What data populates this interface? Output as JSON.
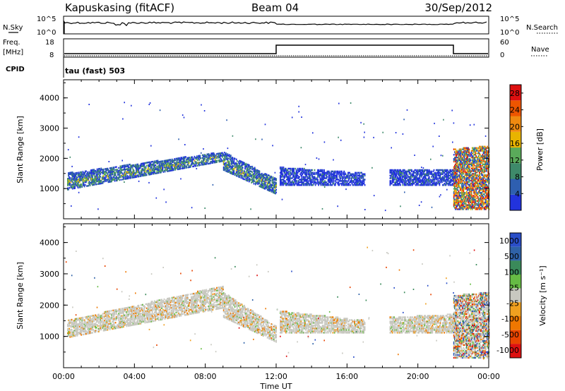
{
  "header": {
    "station": "Kapuskasing (fitACF)",
    "beam": "Beam 04",
    "date": "30/Sep/2012"
  },
  "top_panels": {
    "nsky_label": "N.Sky",
    "nsky_ticks": [
      "10^5",
      "10^0"
    ],
    "nsearch_label": "N.Search",
    "nsearch_ticks": [
      "10^5",
      "10^0"
    ],
    "freq_label": "Freq.",
    "freq_unit": "[MHz]",
    "freq_ticks": [
      "18",
      "8"
    ],
    "nave_label": "Nave",
    "nave_ticks": [
      "60",
      "0"
    ],
    "cpid_label": "CPID",
    "cpid_value": "tau (fast) 503"
  },
  "colors": {
    "power_scale": [
      "#2233dd",
      "#2e5fb0",
      "#3e8a6a",
      "#5aaa5a",
      "#e8b400",
      "#f08a10",
      "#ee5500",
      "#dd1010"
    ],
    "velocity_scale": [
      "#2a4ec8",
      "#2f62a8",
      "#3a8a5a",
      "#66bb44",
      "#c8c8c0",
      "#f0a020",
      "#ee7700",
      "#e84400",
      "#dd1111"
    ]
  },
  "chart_data": [
    {
      "type": "heatmap",
      "title": "",
      "xlabel": "",
      "ylabel": "Slant Range [km]",
      "xlim": [
        "00:00",
        "24:00"
      ],
      "ylim": [
        0,
        4600
      ],
      "yticks": [
        "1000",
        "2000",
        "3000",
        "4000"
      ],
      "colorbar": {
        "label": "Power [dB]",
        "ticks": [
          "4",
          "8",
          "12",
          "16",
          "20",
          "24",
          "28"
        ],
        "range": [
          0,
          30
        ]
      },
      "regions": [
        {
          "t0": 0.2,
          "t1": 9.0,
          "r_lo_start": 950,
          "r_lo_end": 1900,
          "r_hi_start": 1500,
          "r_hi_end": 2200,
          "level": "mixed"
        },
        {
          "t0": 9.0,
          "t1": 12.0,
          "r_lo_start": 1600,
          "r_lo_end": 800,
          "r_hi_start": 2200,
          "r_hi_end": 1300,
          "level": "mixed"
        },
        {
          "t0": 12.2,
          "t1": 17.0,
          "r_lo_start": 1100,
          "r_lo_end": 1100,
          "r_hi_start": 1700,
          "r_hi_end": 1500,
          "level": "low"
        },
        {
          "t0": 18.4,
          "t1": 22.2,
          "r_lo_start": 1100,
          "r_lo_end": 1100,
          "r_hi_start": 1600,
          "r_hi_end": 1600,
          "level": "low"
        },
        {
          "t0": 22.0,
          "t1": 24.0,
          "r_lo_start": 300,
          "r_lo_end": 300,
          "r_hi_start": 2300,
          "r_hi_end": 2400,
          "level": "high"
        }
      ]
    },
    {
      "type": "heatmap",
      "title": "",
      "xlabel": "Time UT",
      "ylabel": "Slant Range [km]",
      "xlim": [
        "00:00",
        "24:00"
      ],
      "ylim": [
        0,
        4600
      ],
      "xticks": [
        "00:00",
        "04:00",
        "08:00",
        "12:00",
        "16:00",
        "20:00",
        "00:00"
      ],
      "yticks": [
        "1000",
        "2000",
        "3000",
        "4000"
      ],
      "colorbar": {
        "label": "Velocity [m s⁻¹]",
        "ticks": [
          "1000",
          "500",
          "100",
          "25",
          "-25",
          "-100",
          "-500",
          "-1000"
        ],
        "range": [
          -1000,
          1000
        ]
      },
      "regions": [
        {
          "t0": 0.2,
          "t1": 9.0,
          "r_lo_start": 950,
          "r_lo_end": 1900,
          "r_hi_start": 1500,
          "r_hi_end": 2600,
          "level": "ground"
        },
        {
          "t0": 9.0,
          "t1": 12.0,
          "r_lo_start": 1600,
          "r_lo_end": 800,
          "r_hi_start": 2400,
          "r_hi_end": 1300,
          "level": "ground"
        },
        {
          "t0": 12.2,
          "t1": 17.0,
          "r_lo_start": 1100,
          "r_lo_end": 1100,
          "r_hi_start": 1800,
          "r_hi_end": 1500,
          "level": "ground"
        },
        {
          "t0": 18.4,
          "t1": 22.2,
          "r_lo_start": 1100,
          "r_lo_end": 1100,
          "r_hi_start": 1600,
          "r_hi_end": 1700,
          "level": "ground"
        },
        {
          "t0": 22.0,
          "t1": 24.0,
          "r_lo_start": 300,
          "r_lo_end": 300,
          "r_hi_start": 2300,
          "r_hi_end": 2400,
          "level": "mixed"
        }
      ]
    }
  ]
}
